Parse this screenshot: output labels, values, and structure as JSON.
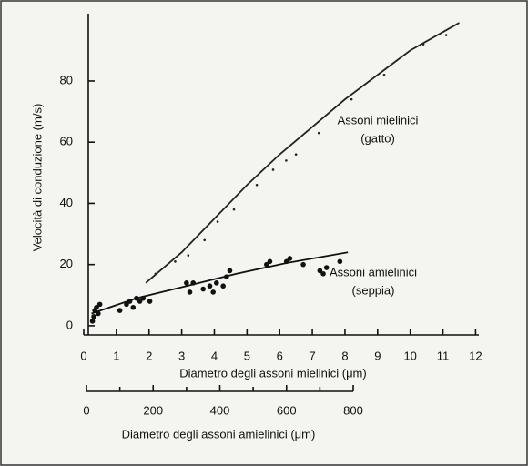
{
  "chart_data": {
    "type": "scatter",
    "ylabel": "Velocità di conduzione (m/s)",
    "xlabel": "Diametro degli assoni mielinici (μm)",
    "x2label": "Diametro degli assoni amielinici (μm)",
    "xlim": [
      0,
      12.1
    ],
    "xticks": [
      0,
      1,
      2,
      3,
      4,
      5,
      6,
      7,
      8,
      9,
      10,
      11,
      12
    ],
    "x2lim": [
      0,
      800
    ],
    "x2ticks": [
      0,
      200,
      400,
      600,
      800
    ],
    "x2minor": [
      100,
      300,
      500,
      700
    ],
    "ylim": [
      -3,
      102
    ],
    "yticks": [
      0,
      20,
      40,
      60,
      80
    ],
    "series": [
      {
        "name": "Assoni mielinici",
        "note": "(gatto)",
        "axis": "x",
        "color": "#222",
        "x": [
          2.2,
          2.8,
          3.2,
          3.7,
          4.1,
          4.6,
          5.3,
          5.8,
          6.2,
          6.5,
          7.2,
          8.2,
          9.2,
          10.4,
          11.1
        ],
        "values": [
          17,
          21,
          23,
          28,
          34,
          38,
          46,
          51,
          54,
          56,
          63,
          74,
          82,
          92,
          95
        ],
        "fit_x": [
          1.9,
          3,
          4,
          5,
          6,
          7,
          8,
          9,
          10,
          11,
          11.5
        ],
        "fit_values": [
          14,
          24,
          35,
          46,
          56,
          65,
          74,
          82,
          90,
          96,
          99
        ]
      },
      {
        "name": "Assoni amielinici",
        "note": "(seppia)",
        "axis": "x2",
        "color": "#111",
        "x": [
          18,
          22,
          25,
          30,
          35,
          40,
          100,
          120,
          130,
          140,
          150,
          160,
          170,
          190,
          300,
          310,
          320,
          350,
          370,
          380,
          390,
          410,
          420,
          430,
          540,
          550,
          600,
          610,
          650,
          700,
          710,
          720,
          760
        ],
        "values": [
          1.5,
          3,
          5,
          6,
          4,
          7,
          5,
          7,
          8,
          6,
          9,
          8,
          9,
          8,
          14,
          11,
          14,
          12,
          13,
          11,
          14,
          13,
          16,
          18,
          20,
          21,
          21,
          22,
          20,
          18,
          17,
          19,
          21
        ],
        "fit_x": [
          15,
          150,
          300,
          450,
          600,
          784
        ],
        "fit_values": [
          4,
          9,
          13,
          17,
          20.5,
          24
        ]
      }
    ]
  }
}
